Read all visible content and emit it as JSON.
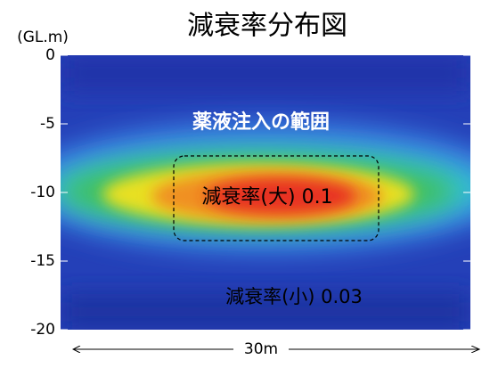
{
  "chart_data": {
    "type": "heatmap",
    "title": "減衰率分布図",
    "y_label": "(GL.m)",
    "x_label": "30m",
    "ylim": [
      -20,
      0
    ],
    "yticks": [
      0,
      -5,
      -10,
      -15,
      -20
    ],
    "annotations": [
      "薬液注入の範囲",
      "減衰率(大) 0.1",
      "減衰率(小) 0.03"
    ]
  }
}
